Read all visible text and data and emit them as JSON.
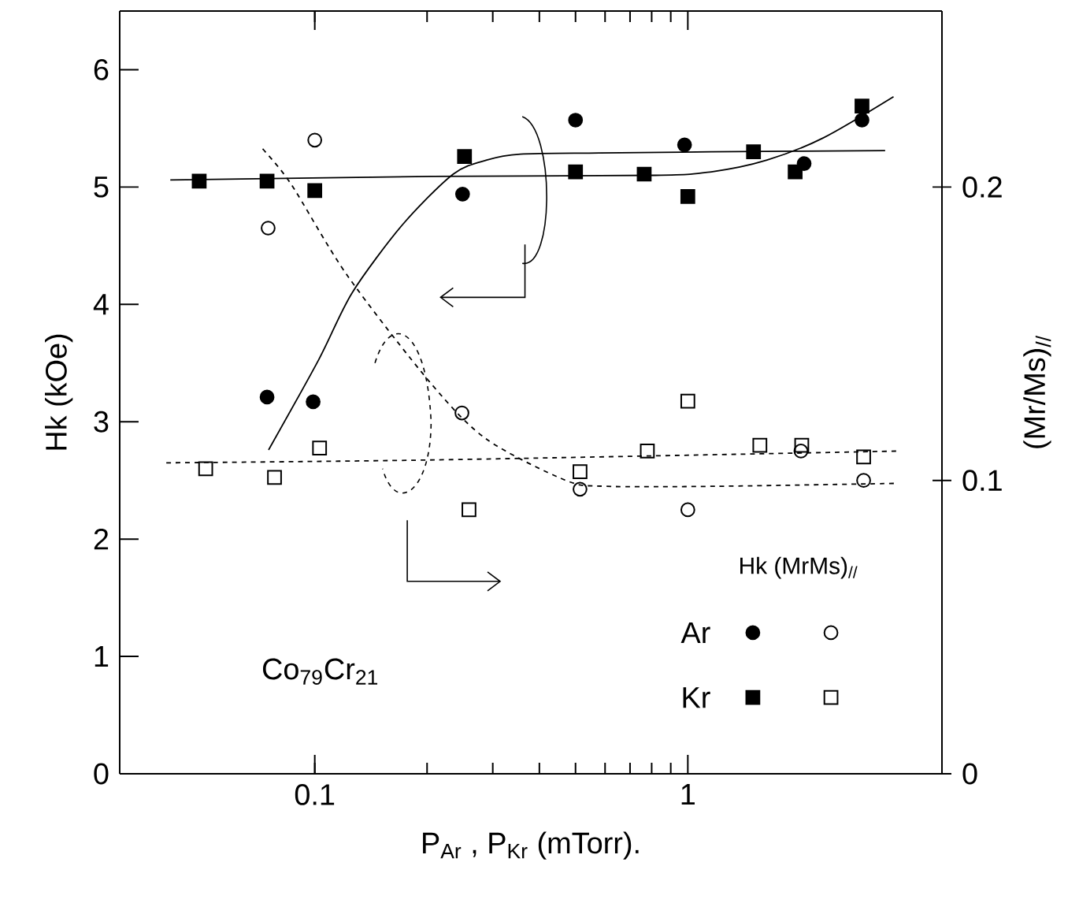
{
  "chart_data": {
    "type": "scatter",
    "xlabel": "P$_{Ar}$ ,  P$_{Kr}$ (mTorr).",
    "ylabel": "Hk (kOe)",
    "y2label": "(Mr/Ms)$_{//}$",
    "legend_title": "Hk (MrMs)$_{//}$",
    "annotations": [
      "Co$_{79}$Cr$_{21}$"
    ],
    "log": "x",
    "xlim": [
      0.03,
      4.8
    ],
    "xticks": [
      0.1,
      1
    ],
    "ylim": [
      0,
      6.5
    ],
    "yticks": [
      0,
      1,
      2,
      3,
      4,
      5,
      6
    ],
    "y2lim": [
      0,
      0.26
    ],
    "y2ticks": [
      0,
      0.1,
      0.2
    ],
    "legend": "bottom right",
    "series": [
      {
        "name": "Ar",
        "color": "#000000",
        "marker": "circle",
        "x": [
          0.0745,
          0.099,
          0.249,
          0.5,
          0.98,
          2.05,
          2.93
        ],
        "values": [
          3.21,
          3.17,
          4.94,
          5.57,
          5.36,
          5.2,
          5.57
        ]
      },
      {
        "name": "Kr",
        "color": "#000000",
        "marker": "square",
        "x": [
          0.049,
          0.0745,
          0.1,
          0.252,
          0.5,
          0.764,
          1.0,
          1.5,
          1.94,
          2.93
        ],
        "values": [
          5.05,
          5.05,
          4.97,
          5.26,
          5.13,
          5.11,
          4.92,
          5.3,
          5.13,
          5.69
        ]
      },
      {
        "axis": "y2",
        "color": "#000000",
        "marker": "circle",
        "x": [
          0.075,
          0.1,
          0.248,
          0.514,
          1.0,
          2.01,
          2.96
        ],
        "values": [
          0.186,
          0.216,
          0.123,
          0.097,
          0.09,
          0.11,
          0.1
        ]
      },
      {
        "axis": "y2",
        "color": "#000000",
        "marker": "square",
        "x": [
          0.051,
          0.078,
          0.103,
          0.259,
          0.514,
          0.779,
          1.0,
          1.56,
          2.02,
          2.96
        ],
        "values": [
          0.104,
          0.101,
          0.111,
          0.09,
          0.103,
          0.11,
          0.127,
          0.112,
          0.112,
          0.108
        ]
      },
      {
        "type": "line",
        "color": "#000000",
        "line_style": "solid",
        "marker": "none",
        "x": [
          0.0752,
          0.1025,
          0.126,
          0.172,
          0.235,
          0.289,
          0.356,
          0.579,
          1.157,
          3.38
        ],
        "values": [
          2.76,
          3.53,
          4.1,
          4.68,
          5.11,
          5.23,
          5.28,
          5.29,
          5.3,
          5.31
        ]
      },
      {
        "type": "line",
        "color": "#000000",
        "line_style": "solid",
        "marker": "none",
        "x": [
          0.041,
          0.205,
          0.818,
          1.157,
          1.63,
          2.31,
          3.56
        ],
        "values": [
          5.06,
          5.09,
          5.1,
          5.13,
          5.23,
          5.42,
          5.77
        ]
      },
      {
        "type": "line",
        "axis": "y2",
        "color": "#000000",
        "line_style": "dashed",
        "marker": "none",
        "x": [
          0.0725,
          0.0864,
          0.122,
          0.205,
          0.289,
          0.471,
          0.6,
          1.2,
          3.65
        ],
        "values": [
          0.213,
          0.201,
          0.17,
          0.133,
          0.114,
          0.1,
          0.098,
          0.098,
          0.099
        ]
      },
      {
        "type": "line",
        "axis": "y2",
        "color": "#000000",
        "line_style": "dashed",
        "marker": "none",
        "x": [
          0.04,
          0.212,
          3.65
        ],
        "values": [
          0.106,
          0.107,
          0.11
        ]
      }
    ]
  }
}
